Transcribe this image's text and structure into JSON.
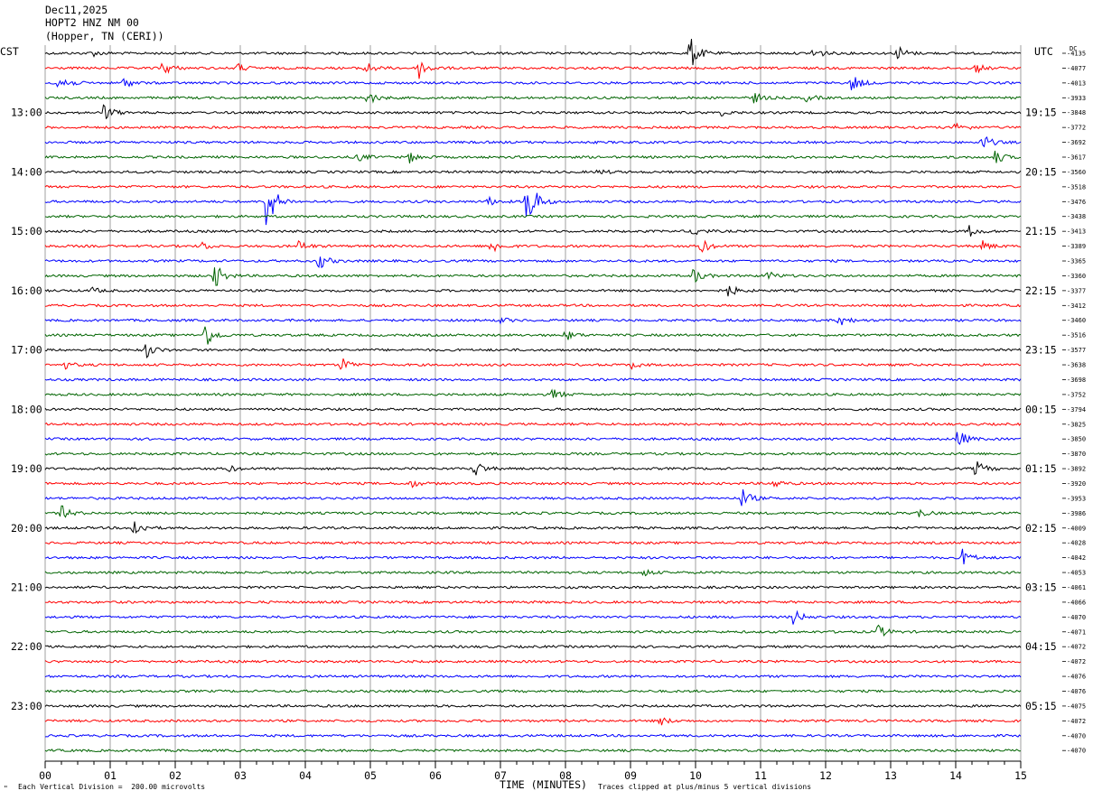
{
  "header": {
    "date": "Dec11,2025",
    "station": "HOPT2 HNZ NM 00",
    "location": "(Hopper, TN (CERI))"
  },
  "left_tz": "CST",
  "right_tz": "UTC",
  "dc_label": "DC",
  "footer": {
    "scale_note": "Each Vertical Division =  200.00 microvolts",
    "clip_note": "Traces clipped at plus/minus 5 vertical divisions",
    "corner_mark": "\""
  },
  "chart_data": {
    "type": "line",
    "xlabel": "TIME (MINUTES)",
    "xlim": [
      0,
      15
    ],
    "x_ticks": [
      "00",
      "01",
      "02",
      "03",
      "04",
      "05",
      "06",
      "07",
      "08",
      "09",
      "10",
      "11",
      "12",
      "13",
      "14",
      "15"
    ],
    "trace_colors": [
      "#000000",
      "#ff0000",
      "#0000ff",
      "#006400"
    ],
    "rows_per_hour": 4,
    "left_hour_labels": [
      "13:00",
      "14:00",
      "15:00",
      "16:00",
      "17:00",
      "18:00",
      "19:00",
      "20:00",
      "21:00",
      "22:00",
      "23:00"
    ],
    "right_hour_labels": [
      "19:15",
      "20:15",
      "21:15",
      "22:15",
      "23:15",
      "00:15",
      "01:15",
      "02:15",
      "03:15",
      "04:15",
      "05:15"
    ],
    "dc_offsets": [
      "-4135",
      "-4077",
      "-4013",
      "-3933",
      "-3848",
      "-3772",
      "-3692",
      "-3617",
      "-3560",
      "-3518",
      "-3476",
      "-3438",
      "-3413",
      "-3389",
      "-3365",
      "-3360",
      "-3377",
      "-3412",
      "-3460",
      "-3516",
      "-3577",
      "-3638",
      "-3698",
      "-3752",
      "-3794",
      "-3825",
      "-3850",
      "-3870",
      "-3892",
      "-3920",
      "-3953",
      "-3986",
      "-4009",
      "-4028",
      "-4042",
      "-4053",
      "-4061",
      "-4066",
      "-4070",
      "-4071",
      "-4072",
      "-4072",
      "-4076",
      "-4076",
      "-4075",
      "-4072",
      "-4070",
      "-4070"
    ],
    "events": [
      {
        "row": 0,
        "min": 0.7,
        "amp": 4
      },
      {
        "row": 0,
        "min": 9.9,
        "amp": 22
      },
      {
        "row": 0,
        "min": 11.8,
        "amp": 8
      },
      {
        "row": 0,
        "min": 13.1,
        "amp": 9
      },
      {
        "row": 1,
        "min": 1.8,
        "amp": 9
      },
      {
        "row": 1,
        "min": 2.95,
        "amp": 5
      },
      {
        "row": 1,
        "min": 4.9,
        "amp": 9
      },
      {
        "row": 1,
        "min": 5.75,
        "amp": 12
      },
      {
        "row": 1,
        "min": 14.3,
        "amp": 5
      },
      {
        "row": 2,
        "min": 0.2,
        "amp": 14
      },
      {
        "row": 2,
        "min": 1.2,
        "amp": 6
      },
      {
        "row": 2,
        "min": 12.4,
        "amp": 11
      },
      {
        "row": 3,
        "min": 4.95,
        "amp": 8
      },
      {
        "row": 3,
        "min": 10.9,
        "amp": 6
      },
      {
        "row": 3,
        "min": 11.7,
        "amp": 4
      },
      {
        "row": 4,
        "min": 0.9,
        "amp": 10
      },
      {
        "row": 4,
        "min": 10.4,
        "amp": 3
      },
      {
        "row": 5,
        "min": 14.0,
        "amp": 7
      },
      {
        "row": 6,
        "min": 14.4,
        "amp": 10
      },
      {
        "row": 7,
        "min": 4.8,
        "amp": 5
      },
      {
        "row": 7,
        "min": 5.6,
        "amp": 6
      },
      {
        "row": 7,
        "min": 14.6,
        "amp": 8
      },
      {
        "row": 8,
        "min": 8.5,
        "amp": 3
      },
      {
        "row": 10,
        "min": 3.4,
        "amp": 36
      },
      {
        "row": 10,
        "min": 7.4,
        "amp": 38
      },
      {
        "row": 10,
        "min": 6.8,
        "amp": 5
      },
      {
        "row": 12,
        "min": 9.95,
        "amp": 6
      },
      {
        "row": 12,
        "min": 14.2,
        "amp": 7
      },
      {
        "row": 13,
        "min": 2.4,
        "amp": 5
      },
      {
        "row": 13,
        "min": 3.9,
        "amp": 6
      },
      {
        "row": 13,
        "min": 6.85,
        "amp": 9
      },
      {
        "row": 13,
        "min": 10.05,
        "amp": 11
      },
      {
        "row": 13,
        "min": 14.4,
        "amp": 6
      },
      {
        "row": 14,
        "min": 4.2,
        "amp": 10
      },
      {
        "row": 15,
        "min": 2.6,
        "amp": 15
      },
      {
        "row": 15,
        "min": 9.95,
        "amp": 10
      },
      {
        "row": 15,
        "min": 11.1,
        "amp": 5
      },
      {
        "row": 16,
        "min": 0.7,
        "amp": 4
      },
      {
        "row": 16,
        "min": 10.5,
        "amp": 7
      },
      {
        "row": 18,
        "min": 12.2,
        "amp": 8
      },
      {
        "row": 18,
        "min": 7.0,
        "amp": 3
      },
      {
        "row": 19,
        "min": 2.45,
        "amp": 16
      },
      {
        "row": 19,
        "min": 8.0,
        "amp": 6
      },
      {
        "row": 20,
        "min": 1.55,
        "amp": 9
      },
      {
        "row": 21,
        "min": 0.3,
        "amp": 4
      },
      {
        "row": 21,
        "min": 4.55,
        "amp": 9
      },
      {
        "row": 21,
        "min": 9.0,
        "amp": 4
      },
      {
        "row": 23,
        "min": 7.8,
        "amp": 7
      },
      {
        "row": 26,
        "min": 14.0,
        "amp": 14
      },
      {
        "row": 28,
        "min": 2.8,
        "amp": 4
      },
      {
        "row": 28,
        "min": 6.6,
        "amp": 10
      },
      {
        "row": 28,
        "min": 14.3,
        "amp": 10
      },
      {
        "row": 29,
        "min": 5.6,
        "amp": 5
      },
      {
        "row": 29,
        "min": 11.2,
        "amp": 5
      },
      {
        "row": 30,
        "min": 10.7,
        "amp": 12
      },
      {
        "row": 31,
        "min": 0.25,
        "amp": 8
      },
      {
        "row": 31,
        "min": 13.4,
        "amp": 6
      },
      {
        "row": 32,
        "min": 1.35,
        "amp": 12
      },
      {
        "row": 34,
        "min": 14.1,
        "amp": 10
      },
      {
        "row": 35,
        "min": 9.2,
        "amp": 4
      },
      {
        "row": 38,
        "min": 11.5,
        "amp": 9
      },
      {
        "row": 39,
        "min": 12.8,
        "amp": 8
      },
      {
        "row": 45,
        "min": 9.45,
        "amp": 5
      }
    ]
  }
}
